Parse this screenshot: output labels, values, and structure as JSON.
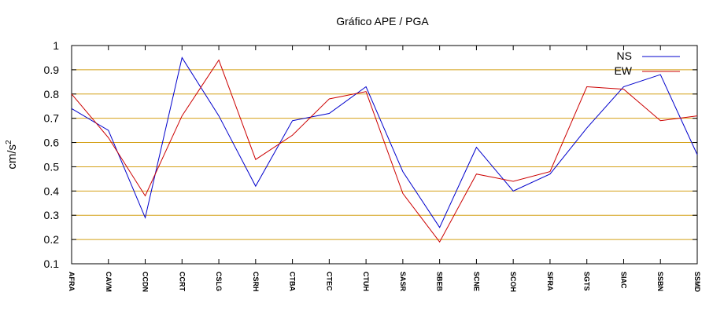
{
  "chart_data": {
    "type": "line",
    "title": "Gráfico  APE / PGA",
    "xlabel": "",
    "ylabel": "cm/s",
    "ylabel_superscript": "2",
    "ylim": [
      0.1,
      1.0
    ],
    "yticks": [
      "0.1",
      "0.2",
      "0.3",
      "0.4",
      "0.5",
      "0.6",
      "0.7",
      "0.8",
      "0.9",
      "1"
    ],
    "grid": true,
    "legend_position": "top-right",
    "categories": [
      "AFRA",
      "CAVM",
      "CCDN",
      "CCRT",
      "CSLG",
      "CSRH",
      "CTBA",
      "CTEC",
      "CTUH",
      "SASR",
      "SBEB",
      "SCNE",
      "SCOH",
      "SFRA",
      "SGTS",
      "SIAC",
      "SSBN",
      "SSMD"
    ],
    "series": [
      {
        "name": "NS",
        "color": "#0000cc",
        "values": [
          0.74,
          0.65,
          0.29,
          0.95,
          0.71,
          0.42,
          0.69,
          0.72,
          0.83,
          0.48,
          0.25,
          0.58,
          0.4,
          0.47,
          0.66,
          0.83,
          0.88,
          0.55
        ]
      },
      {
        "name": "EW",
        "color": "#cc0000",
        "values": [
          0.8,
          0.62,
          0.38,
          0.71,
          0.94,
          0.53,
          0.63,
          0.78,
          0.81,
          0.39,
          0.19,
          0.47,
          0.44,
          0.48,
          0.83,
          0.82,
          0.69,
          0.71
        ]
      }
    ],
    "grid_color": "#d4a017",
    "axis_color": "#000000"
  }
}
